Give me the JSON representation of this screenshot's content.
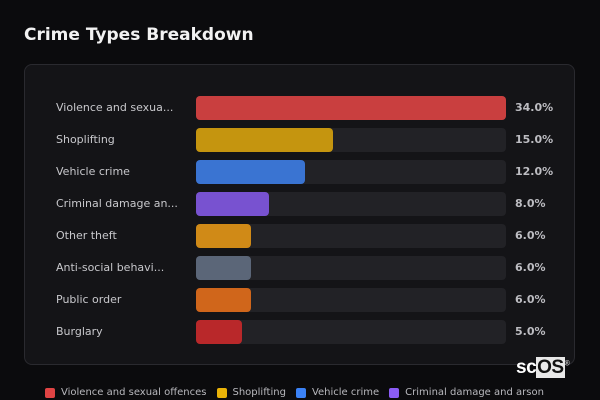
{
  "title": "Crime Types Breakdown",
  "chart_data": {
    "type": "bar",
    "orientation": "horizontal",
    "title": "Crime Types Breakdown",
    "categories": [
      "Violence and sexua...",
      "Shoplifting",
      "Vehicle crime",
      "Criminal damage an...",
      "Other theft",
      "Anti-social behavi...",
      "Public order",
      "Burglary"
    ],
    "values": [
      34.0,
      15.0,
      12.0,
      8.0,
      6.0,
      6.0,
      6.0,
      5.0
    ],
    "value_labels": [
      "34.0%",
      "15.0%",
      "12.0%",
      "8.0%",
      "6.0%",
      "6.0%",
      "6.0%",
      "5.0%"
    ],
    "colors": [
      "#c93f3f",
      "#c5950f",
      "#3a74d2",
      "#7852d0",
      "#d08a17",
      "#5b6678",
      "#d0661b",
      "#b9282a"
    ],
    "xlim": [
      0,
      34
    ],
    "legend": [
      {
        "label": "Violence and sexual offences",
        "color": "#e04444"
      },
      {
        "label": "Shoplifting",
        "color": "#eab308"
      },
      {
        "label": "Vehicle crime",
        "color": "#3b82f6"
      },
      {
        "label": "Criminal damage and arson",
        "color": "#8b5cf6"
      }
    ],
    "legend_position": "bottom"
  },
  "logo": {
    "text_a": "sc",
    "text_b": "OS",
    "mark": "®"
  }
}
